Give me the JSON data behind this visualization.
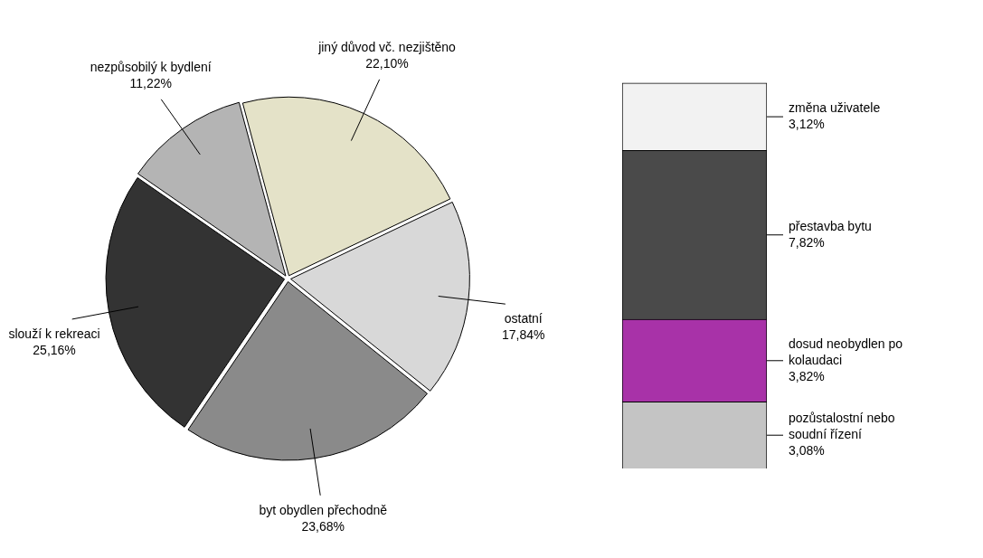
{
  "chart_data": [
    {
      "type": "pie",
      "categories": [
        "jiný důvod vč. nezjištěno",
        "ostatní",
        "byt obydlen přechodně",
        "slouží k rekreaci",
        "nezpůsobilý k bydlení"
      ],
      "values": [
        22.1,
        17.84,
        23.68,
        25.16,
        11.22
      ],
      "value_labels": [
        "22,10%",
        "17,84%",
        "23,68%",
        "25,16%",
        "11,22%"
      ],
      "colors": [
        "#e4e2c8",
        "#d8d8d8",
        "#8a8a8a",
        "#333333",
        "#b4b4b4"
      ],
      "legend": false
    },
    {
      "type": "bar",
      "stacked": true,
      "categories": [
        null
      ],
      "legend": false,
      "series": [
        {
          "name": "pozůstalostní nebo soudní řízení",
          "color": "#c4c4c4",
          "values": [
            3.08
          ],
          "value_labels": [
            "3,08%"
          ]
        },
        {
          "name": "dosud neobydlen po kolaudaci",
          "color": "#a832a8",
          "values": [
            3.82
          ],
          "value_labels": [
            "3,82%"
          ]
        },
        {
          "name": "přestavba bytu",
          "color": "#4a4a4a",
          "values": [
            7.82
          ],
          "value_labels": [
            "7,82%"
          ]
        },
        {
          "name": "změna uživatele",
          "color": "#f2f2f2",
          "values": [
            3.12
          ],
          "value_labels": [
            "3,12%"
          ]
        }
      ]
    }
  ]
}
